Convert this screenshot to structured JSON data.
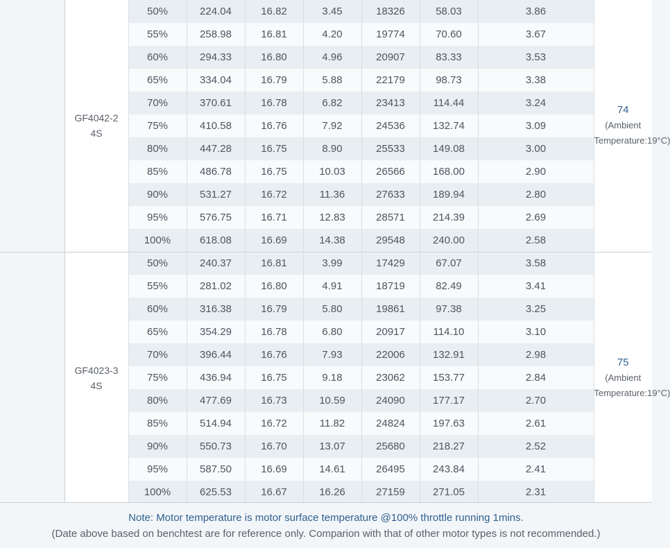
{
  "groups": [
    {
      "motor_line1": "GF4042-2",
      "motor_line2": "4S",
      "temp_value": "74",
      "temp_note_line1": "(Ambient",
      "temp_note_line2": "Temperature:19°C)",
      "rows": [
        [
          "50%",
          "224.04",
          "16.82",
          "3.45",
          "18326",
          "58.03",
          "3.86"
        ],
        [
          "55%",
          "258.98",
          "16.81",
          "4.20",
          "19774",
          "70.60",
          "3.67"
        ],
        [
          "60%",
          "294.33",
          "16.80",
          "4.96",
          "20907",
          "83.33",
          "3.53"
        ],
        [
          "65%",
          "334.04",
          "16.79",
          "5.88",
          "22179",
          "98.73",
          "3.38"
        ],
        [
          "70%",
          "370.61",
          "16.78",
          "6.82",
          "23413",
          "114.44",
          "3.24"
        ],
        [
          "75%",
          "410.58",
          "16.76",
          "7.92",
          "24536",
          "132.74",
          "3.09"
        ],
        [
          "80%",
          "447.28",
          "16.75",
          "8.90",
          "25533",
          "149.08",
          "3.00"
        ],
        [
          "85%",
          "486.78",
          "16.75",
          "10.03",
          "26566",
          "168.00",
          "2.90"
        ],
        [
          "90%",
          "531.27",
          "16.72",
          "11.36",
          "27633",
          "189.94",
          "2.80"
        ],
        [
          "95%",
          "576.75",
          "16.71",
          "12.83",
          "28571",
          "214.39",
          "2.69"
        ],
        [
          "100%",
          "618.08",
          "16.69",
          "14.38",
          "29548",
          "240.00",
          "2.58"
        ]
      ]
    },
    {
      "motor_line1": "GF4023-3",
      "motor_line2": "4S",
      "temp_value": "75",
      "temp_note_line1": "(Ambient",
      "temp_note_line2": "Temperature:19°C)",
      "rows": [
        [
          "50%",
          "240.37",
          "16.81",
          "3.99",
          "17429",
          "67.07",
          "3.58"
        ],
        [
          "55%",
          "281.02",
          "16.80",
          "4.91",
          "18719",
          "82.49",
          "3.41"
        ],
        [
          "60%",
          "316.38",
          "16.79",
          "5.80",
          "19861",
          "97.38",
          "3.25"
        ],
        [
          "65%",
          "354.29",
          "16.78",
          "6.80",
          "20917",
          "114.10",
          "3.10"
        ],
        [
          "70%",
          "396.44",
          "16.76",
          "7.93",
          "22006",
          "132.91",
          "2.98"
        ],
        [
          "75%",
          "436.94",
          "16.75",
          "9.18",
          "23062",
          "153.77",
          "2.84"
        ],
        [
          "80%",
          "477.69",
          "16.73",
          "10.59",
          "24090",
          "177.17",
          "2.70"
        ],
        [
          "85%",
          "514.94",
          "16.72",
          "11.82",
          "24824",
          "197.63",
          "2.61"
        ],
        [
          "90%",
          "550.73",
          "16.70",
          "13.07",
          "25680",
          "218.27",
          "2.52"
        ],
        [
          "95%",
          "587.50",
          "16.69",
          "14.61",
          "26495",
          "243.84",
          "2.41"
        ],
        [
          "100%",
          "625.53",
          "16.67",
          "16.26",
          "27159",
          "271.05",
          "2.31"
        ]
      ]
    }
  ],
  "note": {
    "line1": "Note: Motor temperature is motor surface temperature @100% throttle running 1mins.",
    "line2": "(Date above based on benchtest are for reference only. Comparion with that of other motor types is not recommended.)"
  },
  "colors": {
    "accent": "#2f5f8f",
    "row_alt": "#e9eef2",
    "row": "#f8fafb"
  }
}
